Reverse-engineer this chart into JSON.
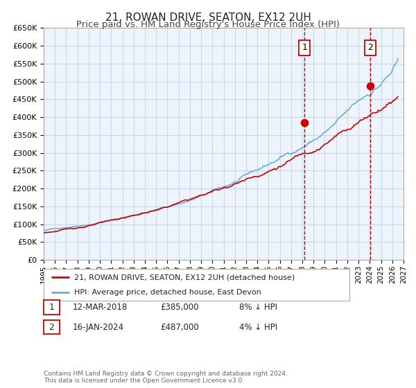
{
  "title": "21, ROWAN DRIVE, SEATON, EX12 2UH",
  "subtitle": "Price paid vs. HM Land Registry's House Price Index (HPI)",
  "legend_label_1": "21, ROWAN DRIVE, SEATON, EX12 2UH (detached house)",
  "legend_label_2": "HPI: Average price, detached house, East Devon",
  "transaction1_date": "12-MAR-2018",
  "transaction1_price": "£385,000",
  "transaction1_hpi": "8% ↓ HPI",
  "transaction1_x": 2018.19,
  "transaction1_y": 385000,
  "transaction2_date": "16-JAN-2024",
  "transaction2_price": "£487,000",
  "transaction2_hpi": "4% ↓ HPI",
  "transaction2_x": 2024.04,
  "transaction2_y": 487000,
  "vline1_x": 2018.19,
  "vline2_x": 2024.04,
  "xmin": 1995,
  "xmax": 2027,
  "ymin": 0,
  "ymax": 650000,
  "yticks": [
    0,
    50000,
    100000,
    150000,
    200000,
    250000,
    300000,
    350000,
    400000,
    450000,
    500000,
    550000,
    600000,
    650000
  ],
  "xticks": [
    1995,
    1996,
    1997,
    1998,
    1999,
    2000,
    2001,
    2002,
    2003,
    2004,
    2005,
    2006,
    2007,
    2008,
    2009,
    2010,
    2011,
    2012,
    2013,
    2014,
    2015,
    2016,
    2017,
    2018,
    2019,
    2020,
    2021,
    2022,
    2023,
    2024,
    2025,
    2026,
    2027
  ],
  "hpi_color": "#6baed6",
  "price_color": "#cc0000",
  "vline_color": "#cc0000",
  "grid_color": "#c8d8e8",
  "plot_bg_color": "#eef4fb",
  "footer_text": "Contains HM Land Registry data © Crown copyright and database right 2024.\nThis data is licensed under the Open Government Licence v3.0.",
  "title_fontsize": 11,
  "subtitle_fontsize": 9.5
}
